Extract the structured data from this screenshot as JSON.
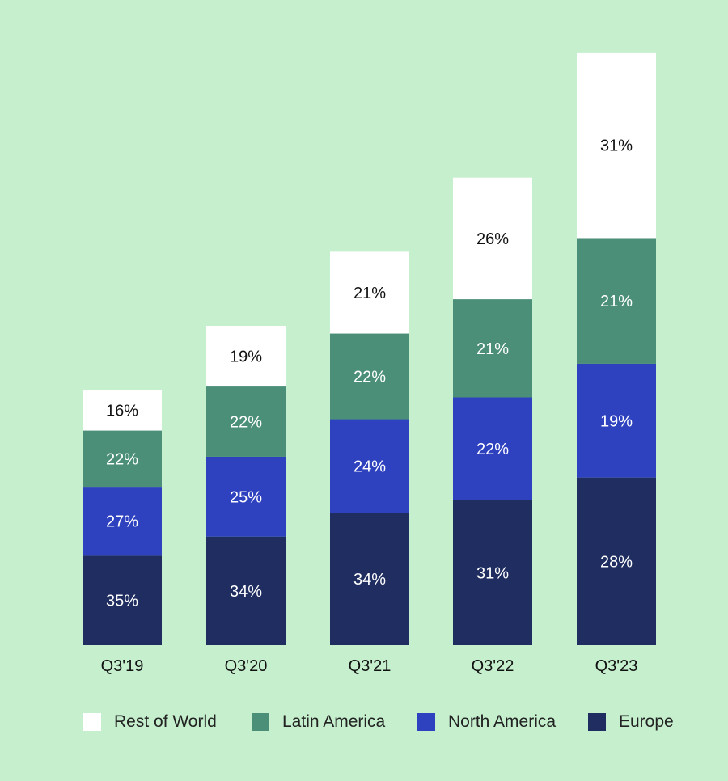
{
  "chart_data": {
    "type": "bar",
    "stacked": true,
    "categories": [
      "Q3'19",
      "Q3'20",
      "Q3'21",
      "Q3'22",
      "Q3'23"
    ],
    "series": [
      {
        "name": "Europe",
        "color": "#1f2d60",
        "label_color": "#ffffff",
        "values": [
          35,
          34,
          34,
          31,
          28
        ]
      },
      {
        "name": "North America",
        "color": "#2e42bf",
        "label_color": "#ffffff",
        "values": [
          27,
          25,
          24,
          22,
          19
        ]
      },
      {
        "name": "Latin America",
        "color": "#4b8f79",
        "label_color": "#ffffff",
        "values": [
          22,
          22,
          22,
          21,
          21
        ]
      },
      {
        "name": "Rest of World",
        "color": "#ffffff",
        "label_color": "#111111",
        "values": [
          16,
          19,
          21,
          26,
          31
        ]
      }
    ],
    "totals_relative": [
      1.0,
      1.25,
      1.54,
      1.83,
      2.32
    ],
    "value_suffix": "%",
    "legend_order": [
      "Rest of World",
      "Latin America",
      "North America",
      "Europe"
    ],
    "legend_position": "bottom",
    "grid": false,
    "show_y_axis": false
  }
}
